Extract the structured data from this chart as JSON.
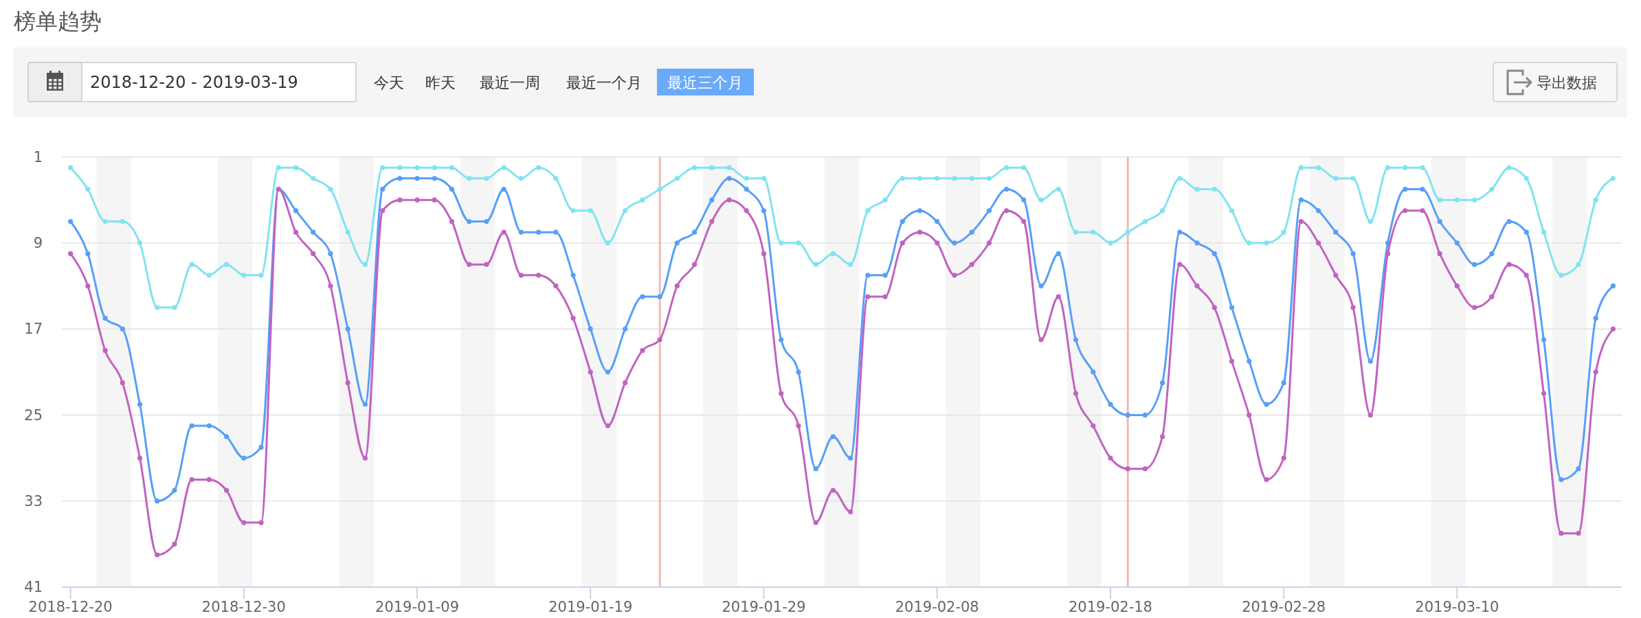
{
  "chart_data": {
    "type": "line",
    "title": "榜单趋势",
    "x": [
      "2018-12-20",
      "2018-12-21",
      "2018-12-22",
      "2018-12-23",
      "2018-12-24",
      "2018-12-25",
      "2018-12-26",
      "2018-12-27",
      "2018-12-28",
      "2018-12-29",
      "2018-12-30",
      "2018-12-31",
      "2019-01-01",
      "2019-01-02",
      "2019-01-03",
      "2019-01-04",
      "2019-01-05",
      "2019-01-06",
      "2019-01-07",
      "2019-01-08",
      "2019-01-09",
      "2019-01-10",
      "2019-01-11",
      "2019-01-12",
      "2019-01-13",
      "2019-01-14",
      "2019-01-15",
      "2019-01-16",
      "2019-01-17",
      "2019-01-18",
      "2019-01-19",
      "2019-01-20",
      "2019-01-21",
      "2019-01-22",
      "2019-01-23",
      "2019-01-24",
      "2019-01-25",
      "2019-01-26",
      "2019-01-27",
      "2019-01-28",
      "2019-01-29",
      "2019-01-30",
      "2019-01-31",
      "2019-02-01",
      "2019-02-02",
      "2019-02-03",
      "2019-02-04",
      "2019-02-05",
      "2019-02-06",
      "2019-02-07",
      "2019-02-08",
      "2019-02-09",
      "2019-02-10",
      "2019-02-11",
      "2019-02-12",
      "2019-02-13",
      "2019-02-14",
      "2019-02-15",
      "2019-02-16",
      "2019-02-17",
      "2019-02-18",
      "2019-02-19",
      "2019-02-20",
      "2019-02-21",
      "2019-02-22",
      "2019-02-23",
      "2019-02-24",
      "2019-02-25",
      "2019-02-26",
      "2019-02-27",
      "2019-02-28",
      "2019-03-01",
      "2019-03-02",
      "2019-03-03",
      "2019-03-04",
      "2019-03-05",
      "2019-03-06",
      "2019-03-07",
      "2019-03-08",
      "2019-03-09",
      "2019-03-10",
      "2019-03-11",
      "2019-03-12",
      "2019-03-13",
      "2019-03-14",
      "2019-03-15",
      "2019-03-16",
      "2019-03-17",
      "2019-03-18",
      "2019-03-19"
    ],
    "series": [
      {
        "color": "#80e4ef",
        "values": [
          2,
          4,
          7,
          7,
          9,
          15,
          15,
          11,
          12,
          11,
          12,
          12,
          2,
          2,
          3,
          4,
          8,
          11,
          2,
          2,
          2,
          2,
          2,
          3,
          3,
          2,
          3,
          2,
          3,
          6,
          6,
          9,
          6,
          5,
          4,
          3,
          2,
          2,
          2,
          3,
          3,
          9,
          9,
          11,
          10,
          11,
          6,
          5,
          3,
          3,
          3,
          3,
          3,
          3,
          2,
          2,
          5,
          4,
          8,
          8,
          9,
          8,
          7,
          6,
          3,
          4,
          4,
          6,
          9,
          9,
          8,
          2,
          2,
          3,
          3,
          7,
          2,
          2,
          2,
          5,
          5,
          5,
          4,
          2,
          3,
          8,
          12,
          11,
          5,
          3
        ]
      },
      {
        "color": "#589ff6",
        "values": [
          7,
          10,
          16,
          17,
          24,
          33,
          32,
          26,
          26,
          27,
          29,
          28,
          4,
          6,
          8,
          10,
          17,
          24,
          4,
          3,
          3,
          3,
          4,
          7,
          7,
          4,
          8,
          8,
          8,
          12,
          17,
          21,
          17,
          14,
          14,
          9,
          8,
          5,
          3,
          4,
          6,
          18,
          21,
          30,
          27,
          29,
          12,
          12,
          7,
          6,
          7,
          9,
          8,
          6,
          4,
          5,
          13,
          10,
          18,
          21,
          24,
          25,
          25,
          22,
          8,
          9,
          10,
          15,
          20,
          24,
          22,
          5,
          6,
          8,
          10,
          20,
          9,
          4,
          4,
          7,
          9,
          11,
          10,
          7,
          8,
          18,
          31,
          30,
          16,
          13
        ]
      },
      {
        "color": "#c063c0",
        "values": [
          10,
          13,
          19,
          22,
          29,
          38,
          37,
          31,
          31,
          32,
          35,
          35,
          4,
          8,
          10,
          13,
          22,
          29,
          6,
          5,
          5,
          5,
          7,
          11,
          11,
          8,
          12,
          12,
          13,
          16,
          21,
          26,
          22,
          19,
          18,
          13,
          11,
          7,
          5,
          6,
          10,
          23,
          26,
          35,
          32,
          34,
          14,
          14,
          9,
          8,
          9,
          12,
          11,
          9,
          6,
          7,
          18,
          14,
          23,
          26,
          29,
          30,
          30,
          27,
          11,
          13,
          15,
          20,
          25,
          31,
          29,
          7,
          9,
          12,
          15,
          25,
          10,
          6,
          6,
          10,
          13,
          15,
          14,
          11,
          12,
          23,
          36,
          36,
          21,
          17
        ]
      }
    ],
    "xlim": [
      "2018-12-19T12:00",
      "2019-03-19T12:00"
    ],
    "xticks": [
      "2018-12-20",
      "2018-12-30",
      "2019-01-09",
      "2019-01-19",
      "2019-01-29",
      "2019-02-08",
      "2019-02-18",
      "2019-02-28",
      "2019-03-10"
    ],
    "ylim": [
      41,
      1
    ],
    "yticks": [
      1,
      9,
      17,
      25,
      33,
      41
    ],
    "grid": "y",
    "marker": "circle",
    "line_style": "solid",
    "bands": [
      {
        "axis": "x",
        "from": "2018-12-21T12:00",
        "to": "2018-12-23T12:00",
        "color": "#f5f5f5"
      },
      {
        "axis": "x",
        "from": "2018-12-28T12:00",
        "to": "2018-12-30T12:00",
        "color": "#f5f5f5"
      },
      {
        "axis": "x",
        "from": "2019-01-04T12:00",
        "to": "2019-01-06T12:00",
        "color": "#f5f5f5"
      },
      {
        "axis": "x",
        "from": "2019-01-11T12:00",
        "to": "2019-01-13T12:00",
        "color": "#f5f5f5"
      },
      {
        "axis": "x",
        "from": "2019-01-18T12:00",
        "to": "2019-01-20T12:00",
        "color": "#f5f5f5"
      },
      {
        "axis": "x",
        "from": "2019-01-25T12:00",
        "to": "2019-01-27T12:00",
        "color": "#f5f5f5"
      },
      {
        "axis": "x",
        "from": "2019-02-01T12:00",
        "to": "2019-02-03T12:00",
        "color": "#f5f5f5"
      },
      {
        "axis": "x",
        "from": "2019-02-08T12:00",
        "to": "2019-02-10T12:00",
        "color": "#f5f5f5"
      },
      {
        "axis": "x",
        "from": "2019-02-15T12:00",
        "to": "2019-02-17T12:00",
        "color": "#f5f5f5"
      },
      {
        "axis": "x",
        "from": "2019-02-22T12:00",
        "to": "2019-02-24T12:00",
        "color": "#f5f5f5"
      },
      {
        "axis": "x",
        "from": "2019-03-01T12:00",
        "to": "2019-03-03T12:00",
        "color": "#f5f5f5"
      },
      {
        "axis": "x",
        "from": "2019-03-08T12:00",
        "to": "2019-03-10T12:00",
        "color": "#f5f5f5"
      },
      {
        "axis": "x",
        "from": "2019-03-15T12:00",
        "to": "2019-03-17T12:00",
        "color": "#f5f5f5"
      }
    ],
    "ref_lines": [
      {
        "axis": "x",
        "value": "2019-01-23",
        "color": "#f2b7b7"
      },
      {
        "axis": "x",
        "value": "2019-02-19",
        "color": "#f2b7b7"
      }
    ],
    "annotations": [
      "2018-12-20 - 2019-03-19",
      "今天",
      "昨天",
      "最近一周",
      "最近一个月",
      "最近三个月",
      "导出数据"
    ]
  }
}
